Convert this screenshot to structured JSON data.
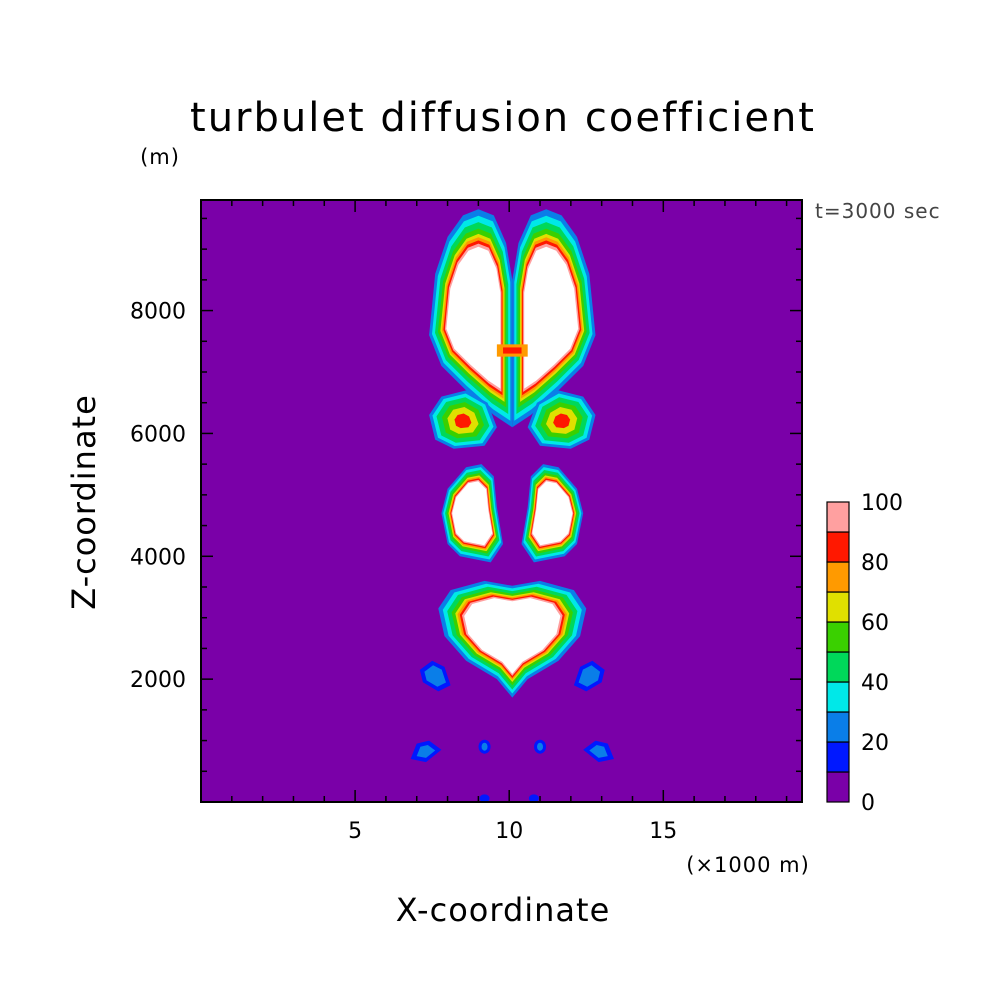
{
  "chart_data": {
    "type": "heatmap",
    "title": "turbulet diffusion coefficient",
    "time_label": "t=3000 sec",
    "xlabel": "X-coordinate",
    "x_unit_label": "(×1000 m)",
    "ylabel": "Z-coordinate",
    "y_unit_label": "(m)",
    "xlim": [
      0,
      19.5
    ],
    "ylim": [
      0,
      9800
    ],
    "x_ticks": [
      5,
      10,
      15
    ],
    "y_ticks": [
      2000,
      4000,
      6000,
      8000
    ],
    "colorbar": {
      "levels": [
        0,
        10,
        20,
        30,
        40,
        50,
        60,
        70,
        80,
        90,
        100
      ],
      "tick_labels": [
        "0",
        "20",
        "40",
        "60",
        "80",
        "100"
      ],
      "colors": [
        "#7a00a8",
        "#0018ff",
        "#0a7ee8",
        "#00e8e8",
        "#00d85a",
        "#3ad000",
        "#e0e000",
        "#ff9a00",
        "#ff1800",
        "#ffa0a0"
      ],
      "above_max_color": "#ffffff"
    },
    "background_value_color": "#7a00a8",
    "features": [
      {
        "name": "upper twin lobes",
        "x_center": 10.1,
        "z_range": [
          5950,
          9650
        ],
        "max_value": ">100"
      },
      {
        "name": "middle twin lobes",
        "x_center": 10.1,
        "z_range": [
          4250,
          5500
        ],
        "max_value": ">100"
      },
      {
        "name": "lower core",
        "x_center": 10.1,
        "z_range": [
          2100,
          3500
        ],
        "max_value": ">100"
      },
      {
        "name": "side patches",
        "x_positions": [
          7.6,
          12.4
        ],
        "z_center": 2000,
        "max_value": 30
      },
      {
        "name": "near-surface patches",
        "x_positions": [
          7.3,
          9.2,
          10.8,
          12.9
        ],
        "z_center": 800,
        "max_value": 30
      }
    ]
  }
}
